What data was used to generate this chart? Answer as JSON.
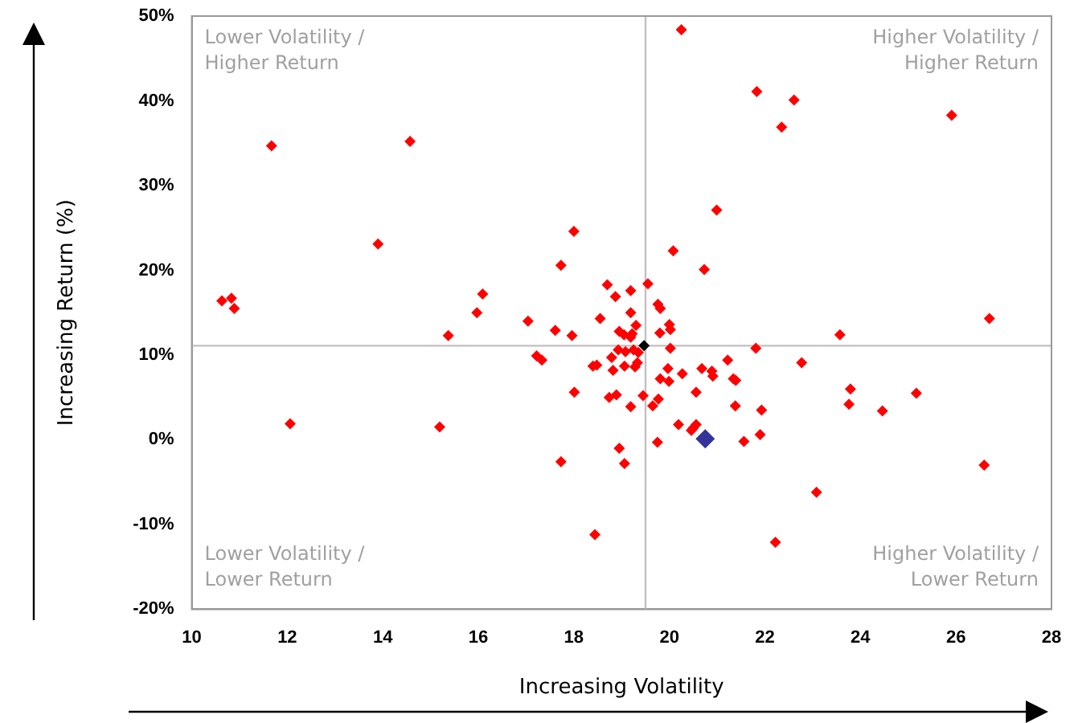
{
  "chart_data": {
    "type": "scatter",
    "xlabel": "Increasing Volatility",
    "ylabel": "Increasing Return (%)",
    "xlim": [
      10,
      28
    ],
    "xticks": [
      10,
      12,
      14,
      16,
      18,
      20,
      22,
      24,
      26,
      28
    ],
    "ylim": [
      -20,
      50
    ],
    "yticks": [
      {
        "value": -20,
        "label": "-20%"
      },
      {
        "value": -10,
        "label": "-10%"
      },
      {
        "value": 0,
        "label": "0%"
      },
      {
        "value": 10,
        "label": "10%"
      },
      {
        "value": 20,
        "label": "20%"
      },
      {
        "value": 30,
        "label": "30%"
      },
      {
        "value": 40,
        "label": "40%"
      },
      {
        "value": 50,
        "label": "50%"
      }
    ],
    "grid": false,
    "legend": false,
    "marker": "diamond",
    "ref_lines": [
      {
        "axis": "x",
        "value": 19.5,
        "color": "#c0c0c0"
      },
      {
        "axis": "y",
        "value": 11.1,
        "color": "#c0c0c0"
      }
    ],
    "annotations": [
      "Lower Volatility / Higher Return",
      "Higher Volatility / Higher Return",
      "Lower Volatility / Lower Return",
      "Higher Volatility / Lower Return"
    ],
    "series": [
      {
        "color": "#ff0000",
        "x": [
          11.67,
          14.57,
          13.9,
          18.0,
          17.73,
          18.7,
          18.87,
          15.97,
          16.09,
          10.63,
          10.83,
          10.89,
          20.25,
          21.83,
          22.61,
          22.35,
          25.91,
          20.99,
          20.08,
          20.73,
          26.7,
          12.06,
          15.19,
          15.37,
          17.04,
          17.22,
          17.33,
          17.61,
          17.96,
          18.01,
          17.73,
          18.44,
          18.4,
          18.48,
          18.55,
          18.79,
          18.82,
          18.74,
          18.89,
          18.95,
          18.93,
          18.95,
          19.06,
          19.06,
          19.19,
          19.55,
          19.19,
          19.76,
          19.81,
          20.0,
          20.02,
          19.3,
          19.8,
          19.05,
          19.19,
          19.22,
          19.08,
          19.25,
          19.35,
          20.02,
          19.28,
          19.33,
          19.19,
          19.45,
          19.65,
          19.77,
          19.81,
          19.99,
          19.97,
          20.27,
          20.68,
          20.89,
          20.91,
          21.22,
          21.34,
          21.39,
          21.38,
          20.56,
          20.19,
          20.46,
          20.5,
          20.56,
          19.75,
          21.56,
          21.9,
          21.93,
          21.81,
          22.77,
          23.79,
          23.76,
          23.57,
          24.46,
          25.17,
          26.59,
          23.08,
          22.22
        ],
        "values": [
          34.7,
          35.2,
          23.1,
          24.6,
          20.6,
          18.3,
          16.9,
          15.0,
          17.2,
          16.4,
          16.7,
          15.5,
          48.4,
          41.1,
          40.1,
          36.9,
          38.3,
          27.1,
          22.3,
          20.1,
          14.3,
          1.9,
          1.5,
          12.3,
          14.0,
          9.9,
          9.4,
          12.9,
          12.3,
          5.6,
          -2.6,
          -11.2,
          8.7,
          8.8,
          14.3,
          9.7,
          8.2,
          5.0,
          5.3,
          12.8,
          10.6,
          -1.0,
          -2.8,
          8.7,
          17.6,
          18.4,
          15.0,
          16.0,
          15.5,
          13.6,
          13.0,
          13.5,
          12.6,
          12.4,
          12.1,
          12.5,
          10.4,
          10.6,
          10.3,
          10.8,
          8.6,
          9.1,
          3.9,
          5.2,
          4.0,
          4.8,
          7.2,
          6.9,
          8.4,
          7.8,
          8.4,
          8.1,
          7.5,
          9.4,
          7.2,
          7.0,
          4.0,
          5.6,
          1.8,
          1.1,
          1.4,
          1.8,
          -0.3,
          -0.2,
          0.6,
          3.5,
          10.8,
          9.1,
          6.0,
          4.2,
          12.4,
          3.4,
          5.5,
          -3.0,
          -6.2,
          -12.1
        ]
      },
      {
        "color": "#000000",
        "x": [
          19.47
        ],
        "values": [
          11.1
        ]
      },
      {
        "color": "#333399",
        "x": [
          20.75
        ],
        "values": [
          0.1
        ]
      }
    ]
  }
}
